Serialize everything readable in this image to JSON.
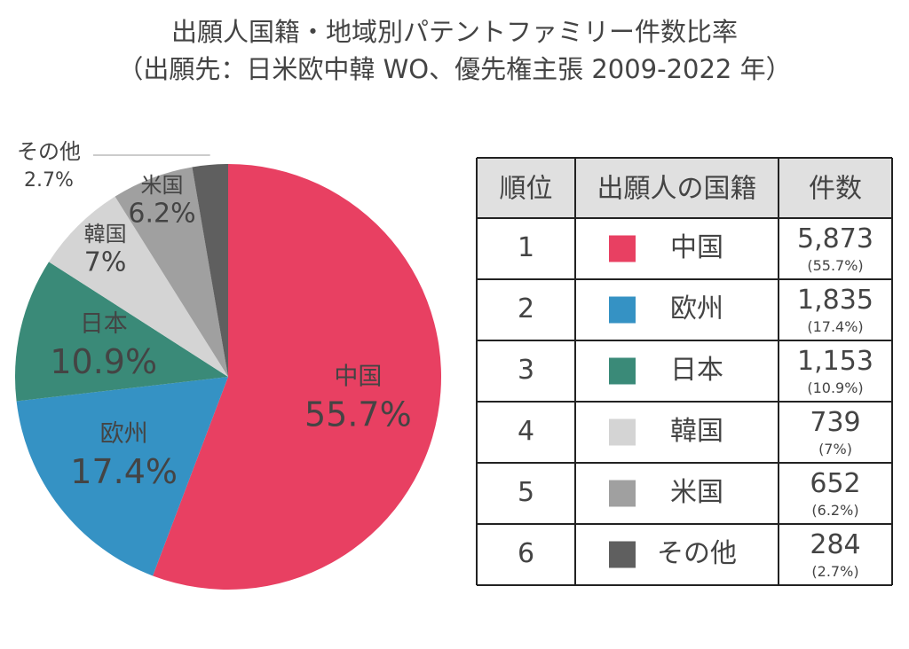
{
  "chart_data": {
    "type": "pie",
    "title": "出願人国籍・地域別パテントファミリー件数比率",
    "subtitle": "（出願先：日米欧中韓 WO、優先権主張 2009-2022 年）",
    "categories": [
      "中国",
      "欧州",
      "日本",
      "韓国",
      "米国",
      "その他"
    ],
    "values": [
      55.7,
      17.4,
      10.9,
      7,
      6.2,
      2.7
    ],
    "value_labels": [
      "55.7%",
      "17.4%",
      "10.9%",
      "7%",
      "6.2%",
      "2.7%"
    ],
    "colors": [
      "#e84062",
      "#3592c4",
      "#3a8a78",
      "#d4d4d4",
      "#a0a0a0",
      "#5f5f5f"
    ]
  },
  "table": {
    "columns": [
      "順位",
      "出願人の国籍",
      "件数"
    ],
    "rows": [
      {
        "rank": "1",
        "count": "5,873",
        "share": "(55.7%)"
      },
      {
        "rank": "2",
        "count": "1,835",
        "share": "(17.4%)"
      },
      {
        "rank": "3",
        "count": "1,153",
        "share": "(10.9%)"
      },
      {
        "rank": "4",
        "count": "739",
        "share": "(7%)"
      },
      {
        "rank": "5",
        "count": "652",
        "share": "(6.2%)"
      },
      {
        "rank": "6",
        "count": "284",
        "share": "(2.7%)"
      }
    ]
  }
}
